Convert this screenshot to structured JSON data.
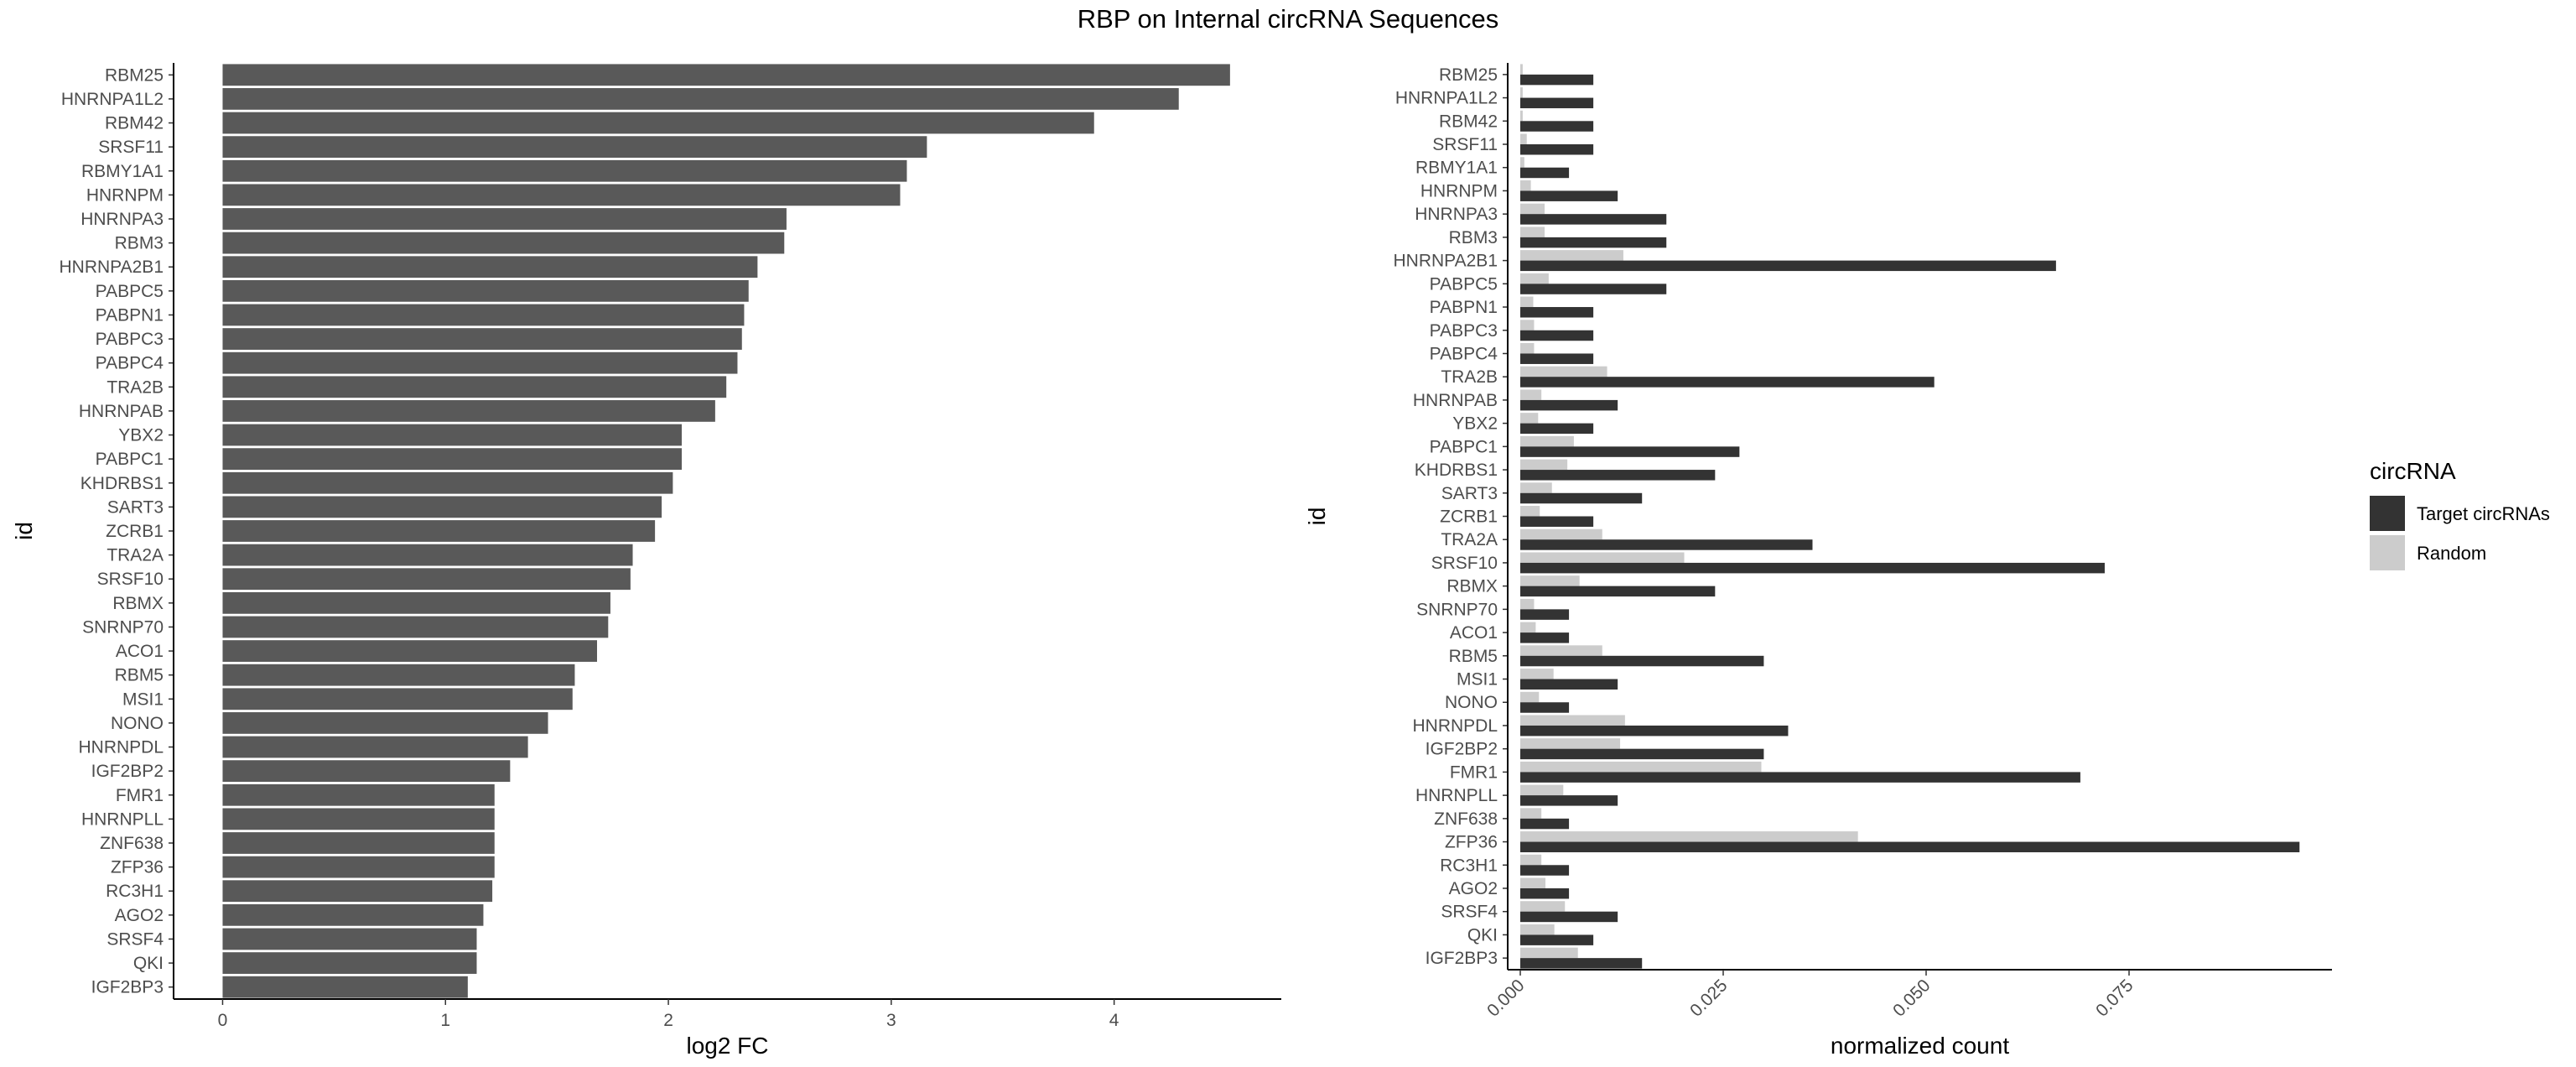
{
  "title": "RBP on Internal circRNA Sequences",
  "chart_data": [
    {
      "type": "bar",
      "orientation": "horizontal",
      "xlabel": "log2 FC",
      "ylabel": "id",
      "xlim": [
        -0.22,
        4.75
      ],
      "xticks": [
        0,
        1,
        2,
        3,
        4
      ],
      "xtick_labels": [
        "0",
        "1",
        "2",
        "3",
        "4"
      ],
      "bar_color": "#595959",
      "grid": false,
      "categories": [
        "RBM25",
        "HNRNPA1L2",
        "RBM42",
        "SRSF11",
        "RBMY1A1",
        "HNRNPM",
        "HNRNPA3",
        "RBM3",
        "HNRNPA2B1",
        "PABPC5",
        "PABPN1",
        "PABPC3",
        "PABPC4",
        "TRA2B",
        "HNRNPAB",
        "YBX2",
        "PABPC1",
        "KHDRBS1",
        "SART3",
        "ZCRB1",
        "TRA2A",
        "SRSF10",
        "RBMX",
        "SNRNP70",
        "ACO1",
        "RBM5",
        "MSI1",
        "NONO",
        "HNRNPDL",
        "IGF2BP2",
        "FMR1",
        "HNRNPLL",
        "ZNF638",
        "ZFP36",
        "RC3H1",
        "AGO2",
        "SRSF4",
        "QKI",
        "IGF2BP3"
      ],
      "values": [
        4.52,
        4.29,
        3.91,
        3.16,
        3.07,
        3.04,
        2.53,
        2.52,
        2.4,
        2.36,
        2.34,
        2.33,
        2.31,
        2.26,
        2.21,
        2.06,
        2.06,
        2.02,
        1.97,
        1.94,
        1.84,
        1.83,
        1.74,
        1.73,
        1.68,
        1.58,
        1.57,
        1.46,
        1.37,
        1.29,
        1.22,
        1.22,
        1.22,
        1.22,
        1.21,
        1.17,
        1.14,
        1.14,
        1.1
      ]
    },
    {
      "type": "bar",
      "orientation": "horizontal",
      "grouped": true,
      "xlabel": "normalized count",
      "ylabel": "id",
      "xlim": [
        -0.00155,
        0.1
      ],
      "xticks": [
        0,
        0.025,
        0.05,
        0.075
      ],
      "xtick_labels": [
        "0.000",
        "0.025",
        "0.050",
        "0.075"
      ],
      "grid": false,
      "legend_title": "circRNA",
      "legend_position": "right",
      "categories": [
        "RBM25",
        "HNRNPA1L2",
        "RBM42",
        "SRSF11",
        "RBMY1A1",
        "HNRNPM",
        "HNRNPA3",
        "RBM3",
        "HNRNPA2B1",
        "PABPC5",
        "PABPN1",
        "PABPC3",
        "PABPC4",
        "TRA2B",
        "HNRNPAB",
        "YBX2",
        "PABPC1",
        "KHDRBS1",
        "SART3",
        "ZCRB1",
        "TRA2A",
        "SRSF10",
        "RBMX",
        "SNRNP70",
        "ACO1",
        "RBM5",
        "MSI1",
        "NONO",
        "HNRNPDL",
        "IGF2BP2",
        "FMR1",
        "HNRNPLL",
        "ZNF638",
        "ZFP36",
        "RC3H1",
        "AGO2",
        "SRSF4",
        "QKI",
        "IGF2BP3"
      ],
      "series": [
        {
          "name": "Target circRNAs",
          "color": "#333333",
          "values": [
            0.009,
            0.009,
            0.009,
            0.009,
            0.006,
            0.012,
            0.018,
            0.018,
            0.066,
            0.018,
            0.009,
            0.009,
            0.009,
            0.051,
            0.012,
            0.009,
            0.027,
            0.024,
            0.015,
            0.009,
            0.036,
            0.072,
            0.024,
            0.006,
            0.006,
            0.03,
            0.012,
            0.006,
            0.033,
            0.03,
            0.069,
            0.012,
            0.006,
            0.096,
            0.006,
            0.006,
            0.012,
            0.009,
            0.015
          ]
        },
        {
          "name": "Random",
          "color": "#cccccc",
          "values": [
            0.0003,
            0.0003,
            0.0003,
            0.0008,
            0.0005,
            0.0013,
            0.003,
            0.003,
            0.0127,
            0.0035,
            0.0016,
            0.0017,
            0.0017,
            0.0107,
            0.0026,
            0.0022,
            0.0066,
            0.0058,
            0.0039,
            0.0024,
            0.0101,
            0.0202,
            0.0073,
            0.0017,
            0.0019,
            0.0101,
            0.0041,
            0.0023,
            0.0129,
            0.0123,
            0.0297,
            0.0053,
            0.0026,
            0.0416,
            0.0026,
            0.0031,
            0.0055,
            0.0042,
            0.0071
          ]
        }
      ]
    }
  ]
}
